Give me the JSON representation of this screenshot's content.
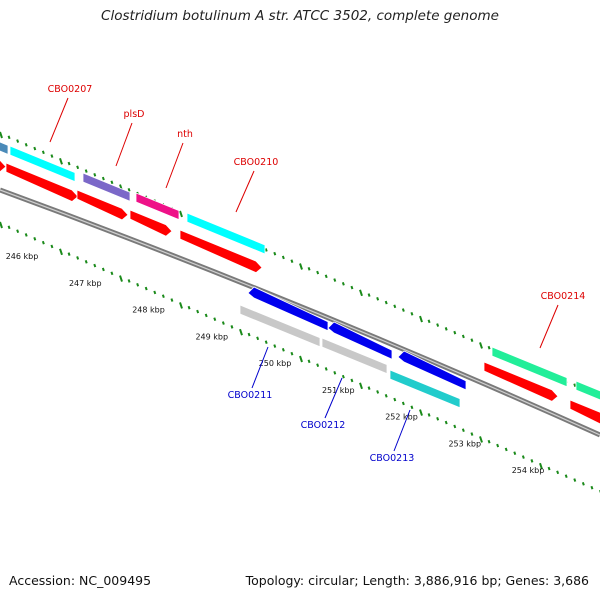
{
  "title": "Clostridium botulinum A str. ATCC 3502, complete genome",
  "footer": {
    "accession": "Accession: NC_009495",
    "topology": "Topology: circular; Length: 3,886,916 bp; Genes: 3,686"
  },
  "colors": {
    "backbone": "#7a7a7a",
    "ticks": "#1a8a1a",
    "forward_label": "#dd0000",
    "reverse_label": "#0000cc"
  },
  "ruler": {
    "unit": "kbp",
    "ticks": [
      {
        "label": "246 kbp",
        "kb": 246
      },
      {
        "label": "247 kbp",
        "kb": 247
      },
      {
        "label": "248 kbp",
        "kb": 248
      },
      {
        "label": "249 kbp",
        "kb": 249
      },
      {
        "label": "250 kbp",
        "kb": 250
      },
      {
        "label": "251 kbp",
        "kb": 251
      },
      {
        "label": "252 kbp",
        "kb": 252
      },
      {
        "label": "253 kbp",
        "kb": 253
      },
      {
        "label": "254 kbp",
        "kb": 254
      }
    ]
  },
  "genes": {
    "forward": [
      {
        "name": "CBO0207",
        "color": "#00ffff"
      },
      {
        "name": "plsD",
        "color": "#7b68c8"
      },
      {
        "name": "nth",
        "color": "#ee1188"
      },
      {
        "name": "CBO0210",
        "color": "#00ffff"
      },
      {
        "name": "CBO0214",
        "color": "#22ee99"
      }
    ],
    "reverse": [
      {
        "name": "CBO0211",
        "color": "#c8c8c8"
      },
      {
        "name": "CBO0212",
        "color": "#c8c8c8"
      },
      {
        "name": "CBO0213",
        "color": "#22cccc"
      }
    ]
  }
}
